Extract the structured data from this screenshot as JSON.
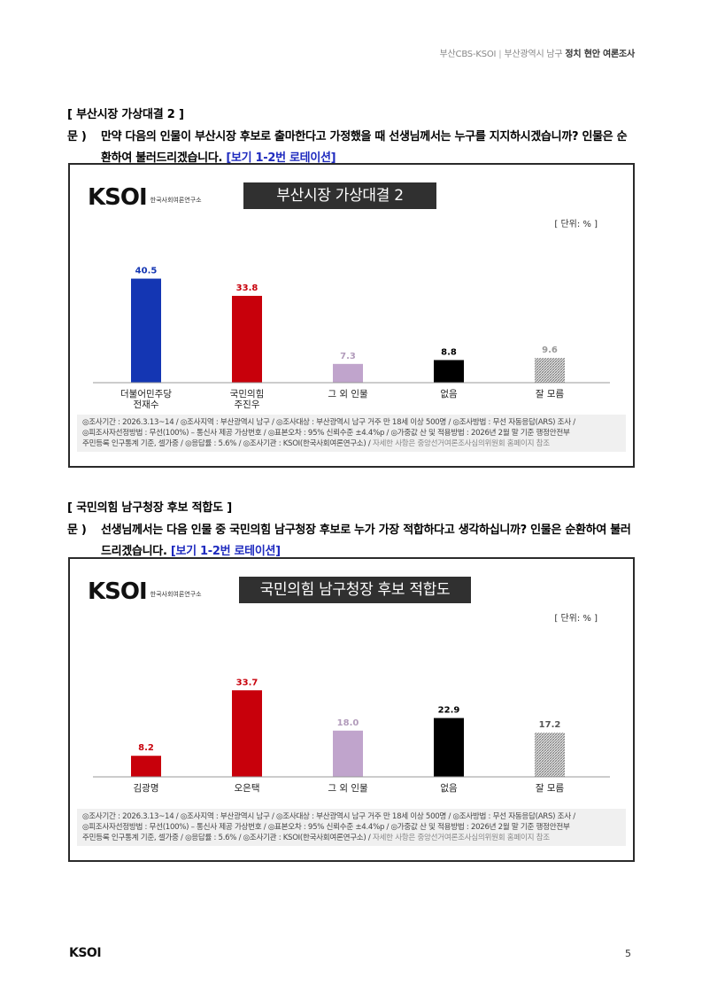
{
  "header": {
    "org": "부산CBS-KSOI",
    "region": "부산광역시 남구",
    "title": "정치 현안 여론조사"
  },
  "sections": [
    {
      "title": "[ 부산시장 가상대결 2 ]",
      "question_label": "문 )",
      "question_text": "만약 다음의 인물이 부산시장 후보로 출마한다고 가정했을 때 선생님께서는 누구를 지지하시겠습니까? 인물은 순환하여 불러드리겠습니다.",
      "rotation_note": "[보기 1-2번 로테이션]",
      "chart": {
        "logo": "KSOI",
        "logo_sub": "한국사회여론연구소",
        "title_box": "부산시장 가상대결 2",
        "unit": "[ 단위: % ]",
        "footnote": {
          "l1": "◎조사기간 : 2026.3.13~14 / ◎조사지역 : 부산광역시 남구 / ◎조사대상 : 부산광역시 남구 거주 만 18세 이상 500명 / ◎조사방법 : 무선 자동응답(ARS) 조사 /",
          "l2": "◎피조사자선정방법 : 무선(100%) – 통신사 제공 가상번호 / ◎표본오차 : 95% 신뢰수준 ±4.4%p / ◎가중값 산 및 적용방법 : 2026년 2월 말 기준 행정안전부",
          "l3a": "주민등록 인구통계 기준, 셀가중 / ◎응답률 : 5.6% / ◎조사기관 : KSOI(한국사회여론연구소) / ",
          "l3b": "자세한 사항은 중앙선거여론조사심의위원회 홈페이지 참조"
        }
      }
    },
    {
      "title": "[ 국민의힘 남구청장 후보 적합도 ]",
      "question_label": "문 )",
      "question_text": "선생님께서는 다음 인물 중 국민의힘 남구청장 후보로 누가 가장 적합하다고 생각하십니까? 인물은 순환하여 불러드리겠습니다.",
      "rotation_note": "[보기 1-2번 로테이션]",
      "chart": {
        "logo": "KSOI",
        "logo_sub": "한국사회여론연구소",
        "title_box": "국민의힘 남구청장 후보 적합도",
        "unit": "[ 단위: % ]",
        "footnote": {
          "l1": "◎조사기간 : 2026.3.13~14 / ◎조사지역 : 부산광역시 남구 / ◎조사대상 : 부산광역시 남구 거주 만 18세 이상 500명 / ◎조사방법 : 무선 자동응답(ARS) 조사 /",
          "l2": "◎피조사자선정방법 : 무선(100%) – 통신사 제공 가상번호 / ◎표본오차 : 95% 신뢰수준 ±4.4%p / ◎가중값 산 및 적용방법 : 2026년 2월 말 기준 행정안전부",
          "l3a": "주민등록 인구통계 기준, 셀가중 / ◎응답률 : 5.6% / ◎조사기관 : KSOI(한국사회여론연구소) / ",
          "l3b": "자세한 사항은 중앙선거여론조사심의위원회 홈페이지 참조"
        }
      }
    }
  ],
  "chart_data": [
    {
      "type": "bar",
      "title": "부산시장 가상대결 2",
      "unit": "[ 단위: % ]",
      "categories": [
        [
          "더불어민주당",
          "전재수"
        ],
        [
          "국민의힘",
          "주진우"
        ],
        [
          "그 외 인물"
        ],
        [
          "없음"
        ],
        [
          "잘 모름"
        ]
      ],
      "values": [
        40.5,
        33.8,
        7.3,
        8.8,
        9.6
      ],
      "colors": [
        "#1436b3",
        "#c8000b",
        "#c0a4cc",
        "#000000",
        "pattern"
      ],
      "value_label_colors": [
        "#1436b3",
        "#c8000b",
        "#b29bbb",
        "#000000",
        "#999999"
      ],
      "grid": false
    },
    {
      "type": "bar",
      "title": "국민의힘 남구청장 후보 적합도",
      "unit": "[ 단위: % ]",
      "categories": [
        [
          "김광명"
        ],
        [
          "오은택"
        ],
        [
          "그 외 인물"
        ],
        [
          "없음"
        ],
        [
          "잘 모름"
        ]
      ],
      "values": [
        8.2,
        33.7,
        18.0,
        22.9,
        17.2
      ],
      "colors": [
        "#c8000b",
        "#c8000b",
        "#c0a4cc",
        "#000000",
        "pattern"
      ],
      "value_label_colors": [
        "#c8000b",
        "#c8000b",
        "#b29bbb",
        "#000000",
        "#555555"
      ],
      "grid": false
    }
  ],
  "footer": {
    "logo": "KSOI",
    "page": "5"
  }
}
